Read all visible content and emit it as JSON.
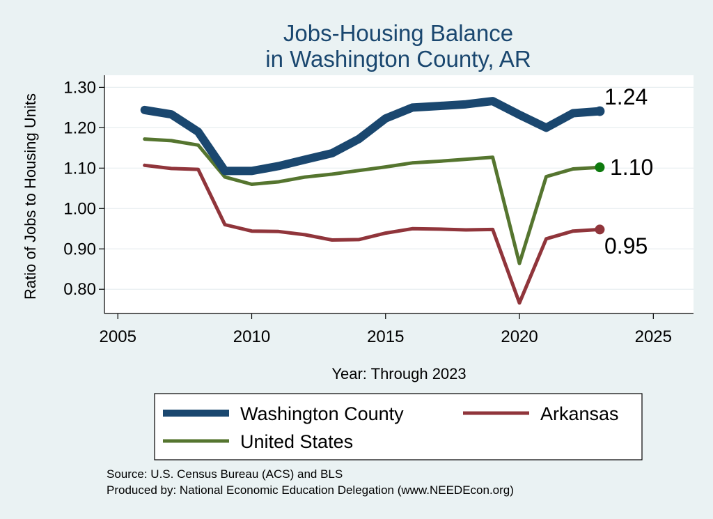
{
  "chart_data": {
    "type": "line",
    "title_lines": [
      "Jobs-Housing Balance",
      "in Washington County, AR"
    ],
    "xlabel": "Year: Through 2023",
    "ylabel": "Ratio of Jobs to Housing Units",
    "xlim": [
      2004.5,
      2026.5
    ],
    "ylim": [
      0.74,
      1.33
    ],
    "x_ticks": [
      2005,
      2010,
      2015,
      2020,
      2025
    ],
    "x_tick_labels": [
      "2005",
      "2010",
      "2015",
      "2020",
      "2025"
    ],
    "y_ticks": [
      0.8,
      0.9,
      1.0,
      1.1,
      1.2,
      1.3
    ],
    "y_tick_labels": [
      "0.80",
      "0.90",
      "1.00",
      "1.10",
      "1.20",
      "1.30"
    ],
    "grid": true,
    "legend_position": "bottom",
    "x": [
      2006,
      2007,
      2008,
      2009,
      2010,
      2011,
      2012,
      2013,
      2014,
      2015,
      2016,
      2017,
      2018,
      2019,
      2020,
      2021,
      2022,
      2023
    ],
    "series": [
      {
        "name": "Washington County",
        "color": "#1a476f",
        "values": [
          1.244,
          1.233,
          1.19,
          1.093,
          1.093,
          1.105,
          1.121,
          1.137,
          1.172,
          1.223,
          1.25,
          1.254,
          1.258,
          1.266,
          1.232,
          1.2,
          1.236,
          1.241
        ],
        "end_label": "1.24",
        "end_marker_color": "#1a476f"
      },
      {
        "name": "Arkansas",
        "color": "#90353b",
        "values": [
          1.107,
          1.099,
          1.097,
          0.96,
          0.944,
          0.943,
          0.935,
          0.922,
          0.923,
          0.939,
          0.95,
          0.949,
          0.947,
          0.948,
          0.766,
          0.925,
          0.944,
          0.948
        ],
        "end_label": "0.95",
        "end_marker_color": "#90353b"
      },
      {
        "name": "United States",
        "color": "#55752f",
        "values": [
          1.172,
          1.168,
          1.157,
          1.078,
          1.06,
          1.066,
          1.078,
          1.085,
          1.094,
          1.103,
          1.113,
          1.117,
          1.122,
          1.127,
          0.864,
          1.079,
          1.098,
          1.102
        ],
        "end_label": "1.10",
        "end_marker_color": "#0e7a0e"
      }
    ]
  },
  "footnotes": {
    "source": "Source: U.S. Census Bureau (ACS) and BLS",
    "produced": "Produced by: National Economic Education Delegation (www.NEEDEcon.org)"
  }
}
